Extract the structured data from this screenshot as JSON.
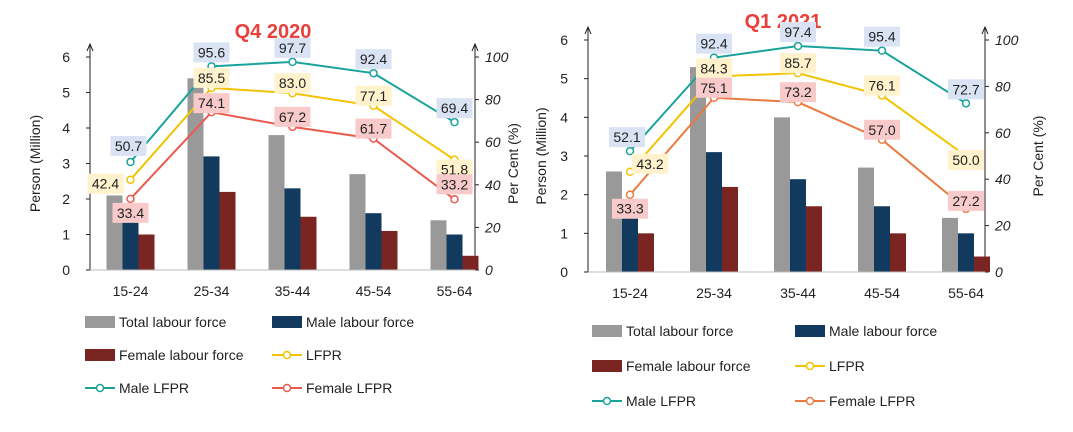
{
  "chart_data": [
    {
      "type": "bar",
      "title": "Q4 2020",
      "categories": [
        "15-24",
        "25-34",
        "35-44",
        "45-54",
        "55-64"
      ],
      "ylabel": "Person (Million)",
      "y2label": "Per Cent (%)",
      "ylim": [
        0,
        6
      ],
      "y2lim": [
        0,
        100
      ],
      "yticks": [
        "0",
        "1",
        "2",
        "3",
        "4",
        "5",
        "6"
      ],
      "y2ticks": [
        "0",
        "20",
        "40",
        "60",
        "80",
        "100"
      ],
      "bars": [
        {
          "name": "Total labour force",
          "color": "#999999",
          "values": [
            2.1,
            5.4,
            3.8,
            2.7,
            1.4
          ]
        },
        {
          "name": "Male labour force",
          "color": "#123a5e",
          "values": [
            1.5,
            3.2,
            2.3,
            1.6,
            1.0
          ]
        },
        {
          "name": "Female labour force",
          "color": "#7b2522",
          "values": [
            1.0,
            2.2,
            1.5,
            1.1,
            0.4
          ]
        }
      ],
      "lines": [
        {
          "name": "LFPR",
          "color": "#f2c300",
          "label_bg": "#fff2cc",
          "values": [
            42.4,
            85.5,
            83.0,
            77.1,
            51.8
          ],
          "labels": [
            "42.4",
            "85.5",
            "83.0",
            "77.1",
            "51.8"
          ]
        },
        {
          "name": "Male LFPR",
          "color": "#19a39b",
          "label_bg": "#dae3f3",
          "values": [
            50.7,
            95.6,
            97.7,
            92.4,
            69.4
          ],
          "labels": [
            "50.7",
            "95.6",
            "97.7",
            "92.4",
            "69.4"
          ]
        },
        {
          "name": "Female LFPR",
          "color": "#ea5a4f",
          "label_bg": "#f8cbca",
          "values": [
            33.4,
            74.1,
            67.2,
            61.7,
            33.2
          ],
          "labels": [
            "33.4",
            "74.1",
            "67.2",
            "61.7",
            "33.2"
          ]
        }
      ]
    },
    {
      "type": "bar",
      "title": "Q1 2021",
      "categories": [
        "15-24",
        "25-34",
        "35-44",
        "45-54",
        "55-64"
      ],
      "ylabel": "Person (Million)",
      "y2label": "Per Cent (%)",
      "ylim": [
        0,
        6
      ],
      "y2lim": [
        0,
        100
      ],
      "yticks": [
        "0",
        "1",
        "2",
        "3",
        "4",
        "5",
        "6"
      ],
      "y2ticks": [
        "0",
        "20",
        "40",
        "60",
        "80",
        "100"
      ],
      "bars": [
        {
          "name": "Total labour force",
          "color": "#999999",
          "values": [
            2.6,
            5.3,
            4.0,
            2.7,
            1.4
          ]
        },
        {
          "name": "Male labour force",
          "color": "#123a5e",
          "values": [
            1.7,
            3.1,
            2.4,
            1.7,
            1.0
          ]
        },
        {
          "name": "Female labour force",
          "color": "#7b2522",
          "values": [
            1.0,
            2.2,
            1.7,
            1.0,
            0.4
          ]
        }
      ],
      "lines": [
        {
          "name": "LFPR",
          "color": "#f2c300",
          "label_bg": "#fff2cc",
          "values": [
            43.2,
            84.3,
            85.7,
            76.1,
            50.0
          ],
          "labels": [
            "43.2",
            "84.3",
            "85.7",
            "76.1",
            "50.0"
          ]
        },
        {
          "name": "Male LFPR",
          "color": "#19a39b",
          "label_bg": "#dae3f3",
          "values": [
            52.1,
            92.4,
            97.4,
            95.4,
            72.7
          ],
          "labels": [
            "52.1",
            "92.4",
            "97.4",
            "95.4",
            "72.7"
          ]
        },
        {
          "name": "Female LFPR",
          "color": "#ea7a3f",
          "label_bg": "#f8cbca",
          "values": [
            33.3,
            75.1,
            73.2,
            57.0,
            27.2
          ],
          "labels": [
            "33.3",
            "75.1",
            "73.2",
            "57.0",
            "27.2"
          ]
        }
      ]
    }
  ],
  "title_color": "#e8403a"
}
